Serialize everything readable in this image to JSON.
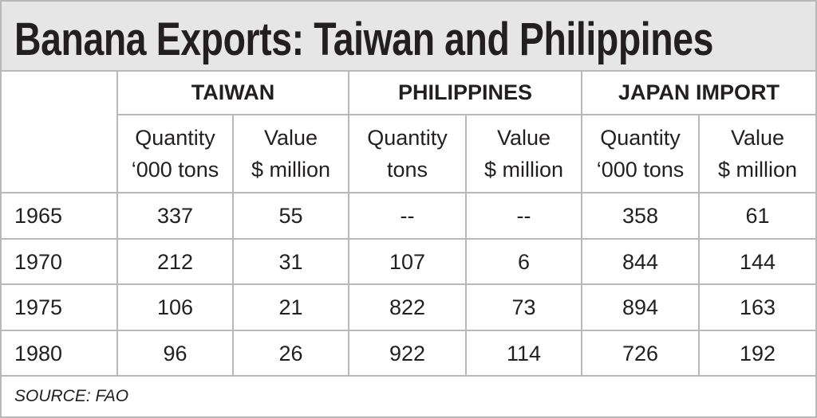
{
  "title": "Banana Exports: Taiwan and Philippines",
  "table": {
    "groups": [
      "TAIWAN",
      "PHILIPPINES",
      "JAPAN IMPORT"
    ],
    "subheaders": [
      [
        "Quantity",
        "‘000 tons"
      ],
      [
        "Value",
        "$ million"
      ],
      [
        "Quantity",
        "tons"
      ],
      [
        "Value",
        "$ million"
      ],
      [
        "Quantity",
        "‘000 tons"
      ],
      [
        "Value",
        "$ million"
      ]
    ],
    "rows": [
      [
        "1965",
        "337",
        "55",
        "--",
        "--",
        "358",
        "61"
      ],
      [
        "1970",
        "212",
        "31",
        "107",
        "6",
        "844",
        "144"
      ],
      [
        "1975",
        "106",
        "21",
        "822",
        "73",
        "894",
        "163"
      ],
      [
        "1980",
        "96",
        "26",
        "922",
        "114",
        "726",
        "192"
      ]
    ]
  },
  "source": "SOURCE: FAO"
}
